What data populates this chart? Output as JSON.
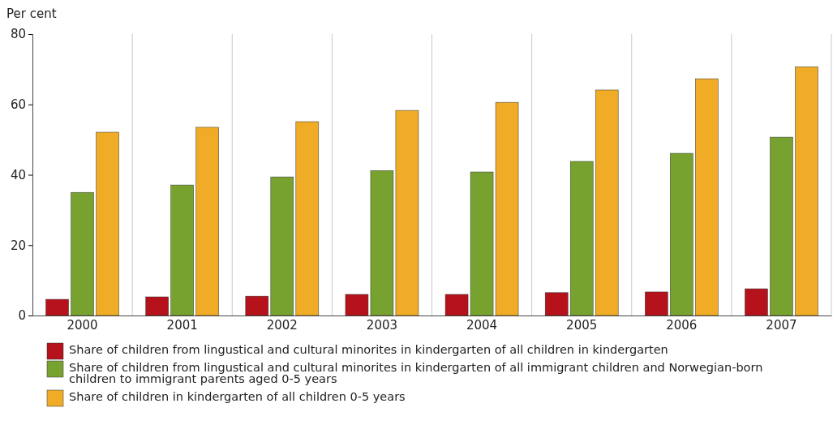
{
  "chart_data": {
    "type": "bar",
    "ylabel": "Per cent",
    "categories": [
      "2000",
      "2001",
      "2002",
      "2003",
      "2004",
      "2005",
      "2006",
      "2007"
    ],
    "series": [
      {
        "name": "Share of children from lingustical and cultural minorites in kindergarten of all children in kindergarten",
        "color": "#b5121b",
        "values": [
          4.6,
          5.3,
          5.5,
          6.0,
          6.0,
          6.5,
          6.7,
          7.6
        ]
      },
      {
        "name": "Share of children from lingustical and cultural minorites in kindergarten of all immigrant children and Norwegian-born children to immigrant parents aged 0-5 years",
        "color": "#78a22f",
        "values": [
          35.0,
          37.1,
          39.4,
          41.2,
          40.8,
          43.8,
          46.1,
          50.7
        ]
      },
      {
        "name": "Share of children in kindergarten of all children 0-5 years",
        "color": "#f0ac26",
        "values": [
          52.1,
          53.5,
          55.1,
          58.3,
          60.6,
          64.1,
          67.3,
          70.7
        ]
      }
    ],
    "ylim": [
      0,
      80
    ],
    "yticks": [
      0,
      20,
      40,
      60,
      80
    ],
    "grid": "x",
    "legend": "bottom"
  }
}
